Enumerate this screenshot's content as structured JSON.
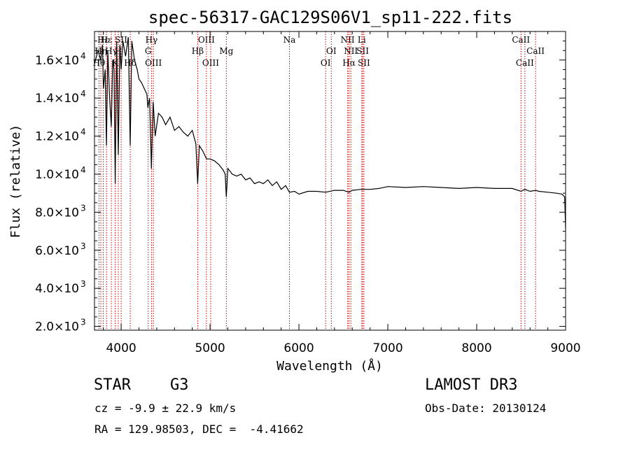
{
  "chart_data": {
    "type": "line",
    "title": "spec-56317-GAC129S06V1_sp11-222.fits",
    "xlabel": "Wavelength (Å)",
    "ylabel": "Flux (relative)",
    "xlim": [
      3700,
      9000
    ],
    "ylim": [
      1800,
      17500
    ],
    "x_ticks": [
      4000,
      5000,
      6000,
      7000,
      8000,
      9000
    ],
    "y_ticks": [
      {
        "value": 2000,
        "mant": "2.0",
        "exp": "3"
      },
      {
        "value": 4000,
        "mant": "4.0",
        "exp": "3"
      },
      {
        "value": 6000,
        "mant": "6.0",
        "exp": "3"
      },
      {
        "value": 8000,
        "mant": "8.0",
        "exp": "3"
      },
      {
        "value": 10000,
        "mant": "1.0",
        "exp": "4"
      },
      {
        "value": 12000,
        "mant": "1.2",
        "exp": "4"
      },
      {
        "value": 14000,
        "mant": "1.4",
        "exp": "4"
      },
      {
        "value": 16000,
        "mant": "1.6",
        "exp": "4"
      }
    ],
    "series": [
      {
        "name": "spectrum",
        "x": [
          3700,
          3740,
          3770,
          3790,
          3800,
          3820,
          3835,
          3850,
          3870,
          3889,
          3905,
          3920,
          3933,
          3950,
          3968,
          3985,
          4000,
          4020,
          4050,
          4080,
          4102,
          4120,
          4150,
          4180,
          4200,
          4230,
          4260,
          4290,
          4300,
          4320,
          4340,
          4360,
          4383,
          4420,
          4460,
          4500,
          4550,
          4600,
          4650,
          4700,
          4750,
          4800,
          4840,
          4861,
          4880,
          4920,
          4960,
          5000,
          5050,
          5100,
          5150,
          5170,
          5183,
          5200,
          5250,
          5300,
          5350,
          5400,
          5450,
          5500,
          5550,
          5600,
          5650,
          5700,
          5750,
          5800,
          5850,
          5893,
          5950,
          6000,
          6100,
          6200,
          6300,
          6400,
          6500,
          6563,
          6600,
          6700,
          6800,
          6900,
          7000,
          7200,
          7400,
          7600,
          7800,
          8000,
          8200,
          8400,
          8498,
          8542,
          8600,
          8662,
          8700,
          8800,
          8900,
          8960,
          8990,
          9000
        ],
        "y": [
          15800,
          16500,
          16000,
          16800,
          14500,
          15500,
          11500,
          16500,
          14000,
          12500,
          16000,
          15500,
          9500,
          17000,
          11000,
          16800,
          15500,
          17000,
          16200,
          17200,
          11500,
          17000,
          16000,
          15500,
          15000,
          14800,
          14500,
          14200,
          13500,
          14000,
          10300,
          13800,
          12000,
          13200,
          13000,
          12600,
          13000,
          12300,
          12500,
          12200,
          12000,
          12300,
          11600,
          9500,
          11500,
          11200,
          10800,
          10800,
          10700,
          10500,
          10200,
          10000,
          8800,
          10300,
          10000,
          9900,
          10000,
          9700,
          9800,
          9500,
          9600,
          9500,
          9700,
          9400,
          9600,
          9200,
          9400,
          9050,
          9100,
          8950,
          9100,
          9100,
          9050,
          9150,
          9150,
          9050,
          9150,
          9200,
          9200,
          9250,
          9350,
          9300,
          9350,
          9300,
          9250,
          9300,
          9250,
          9250,
          9100,
          9200,
          9100,
          9150,
          9100,
          9050,
          9000,
          8950,
          8800,
          7100
        ]
      }
    ],
    "lines": [
      {
        "wl": 3750,
        "name": "Hθ",
        "row": 3
      },
      {
        "wl": 3771,
        "name": "Hη",
        "row": 2
      },
      {
        "wl": 3798,
        "name": "Hε",
        "row": 1
      },
      {
        "wl": 3835,
        "name": "Hε",
        "row": 1
      },
      {
        "wl": 3889,
        "name": "Hγ",
        "row": 2
      },
      {
        "wl": 3933,
        "name": "K",
        "row": 3
      },
      {
        "wl": 3968,
        "name": "H",
        "row": 2
      },
      {
        "wl": 4000,
        "name": "SII",
        "row": 1
      },
      {
        "wl": 4102,
        "name": "Hδ",
        "row": 3
      },
      {
        "wl": 4304,
        "name": "G",
        "row": 2
      },
      {
        "wl": 4341,
        "name": "Hγ",
        "row": 1
      },
      {
        "wl": 4363,
        "name": "OIII",
        "row": 3
      },
      {
        "wl": 4861,
        "name": "Hβ",
        "row": 2
      },
      {
        "wl": 4959,
        "name": "OIII",
        "row": 1
      },
      {
        "wl": 5007,
        "name": "OIII",
        "row": 3
      },
      {
        "wl": 5183,
        "name": "Mg",
        "row": 2
      },
      {
        "wl": 5893,
        "name": "Na",
        "row": 1
      },
      {
        "wl": 6300,
        "name": "OI",
        "row": 3
      },
      {
        "wl": 6364,
        "name": "OI",
        "row": 2
      },
      {
        "wl": 6548,
        "name": "NII",
        "row": 1
      },
      {
        "wl": 6563,
        "name": "Hα",
        "row": 3
      },
      {
        "wl": 6584,
        "name": "NII",
        "row": 2
      },
      {
        "wl": 6707,
        "name": "Li",
        "row": 1
      },
      {
        "wl": 6717,
        "name": "SII",
        "row": 2
      },
      {
        "wl": 6731,
        "name": "SII",
        "row": 3
      },
      {
        "wl": 8498,
        "name": "CaII",
        "row": 1
      },
      {
        "wl": 8542,
        "name": "CaII",
        "row": 3
      },
      {
        "wl": 8662,
        "name": "CaII",
        "row": 2
      }
    ]
  },
  "info": {
    "object_class": "STAR",
    "subclass": "G3",
    "survey": "LAMOST DR3",
    "cz": "cz = -9.9 ± 22.9 km/s",
    "obs_date": "Obs-Date: 20130124",
    "coords": "RA = 129.98503, DEC =  -4.41662"
  },
  "colors": {
    "spectrum": "#000000",
    "line_markers": "#cc0000",
    "background": "#ffffff"
  }
}
